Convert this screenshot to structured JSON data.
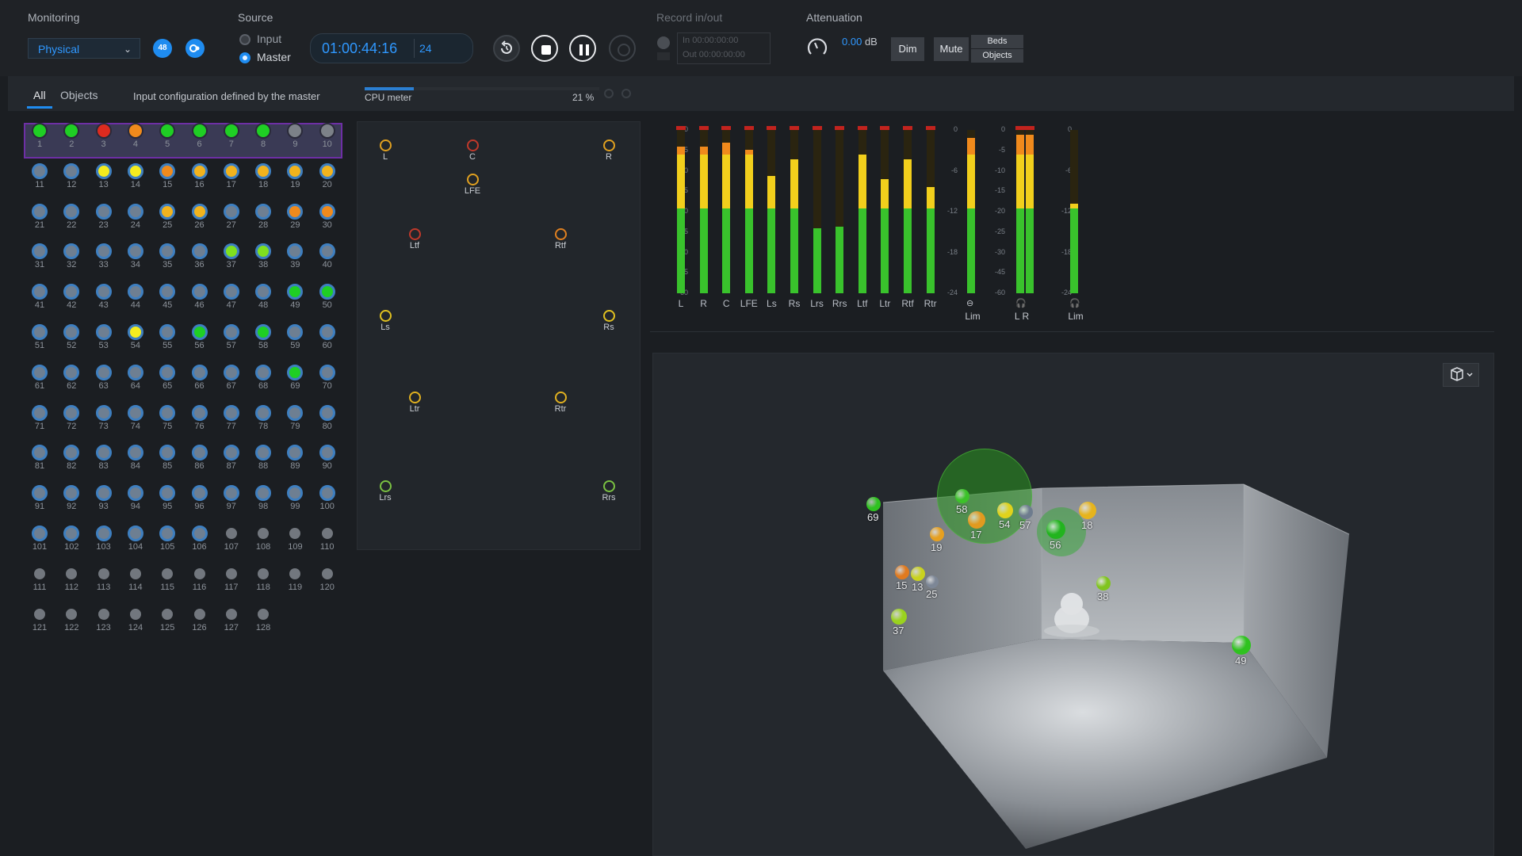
{
  "monitoring": {
    "title": "Monitoring",
    "mode": "Physical",
    "badge": "48"
  },
  "source": {
    "title": "Source",
    "options": [
      "Input",
      "Master"
    ],
    "selected": "Master"
  },
  "transport": {
    "timecode": "01:00:44:16",
    "fps": "24"
  },
  "record": {
    "title": "Record in/out",
    "in_label": "In",
    "in_value": "00:00:00:00",
    "out_label": "Out",
    "out_value": "00:00:00:00"
  },
  "attenuation": {
    "title": "Attenuation",
    "value": "0.00",
    "unit": "dB",
    "dim": "Dim",
    "mute": "Mute",
    "beds": "Beds",
    "objects": "Objects"
  },
  "tabs": {
    "all": "All",
    "objects": "Objects",
    "info": "Input configuration defined by the master",
    "cpu_label": "CPU meter",
    "cpu_value": "21 %",
    "cpu_fraction": 0.21
  },
  "inputs": [
    {
      "n": "1",
      "c": "green"
    },
    {
      "n": "2",
      "c": "green"
    },
    {
      "n": "3",
      "c": "red"
    },
    {
      "n": "4",
      "c": "orange"
    },
    {
      "n": "5",
      "c": "green"
    },
    {
      "n": "6",
      "c": "green"
    },
    {
      "n": "7",
      "c": "green"
    },
    {
      "n": "8",
      "c": "green"
    },
    {
      "n": "9",
      "c": "grey"
    },
    {
      "n": "10",
      "c": "grey"
    },
    {
      "n": "11",
      "c": "ring"
    },
    {
      "n": "12",
      "c": "ring"
    },
    {
      "n": "13",
      "c": "yellow"
    },
    {
      "n": "14",
      "c": "yellow"
    },
    {
      "n": "15",
      "c": "orange"
    },
    {
      "n": "16",
      "c": "amber"
    },
    {
      "n": "17",
      "c": "amber"
    },
    {
      "n": "18",
      "c": "amber"
    },
    {
      "n": "19",
      "c": "amber"
    },
    {
      "n": "20",
      "c": "amber"
    },
    {
      "n": "21",
      "c": "ring"
    },
    {
      "n": "22",
      "c": "ring"
    },
    {
      "n": "23",
      "c": "ring"
    },
    {
      "n": "24",
      "c": "ring"
    },
    {
      "n": "25",
      "c": "amber"
    },
    {
      "n": "26",
      "c": "amber"
    },
    {
      "n": "27",
      "c": "ring"
    },
    {
      "n": "28",
      "c": "ring"
    },
    {
      "n": "29",
      "c": "orange"
    },
    {
      "n": "30",
      "c": "orange"
    },
    {
      "n": "31",
      "c": "ring"
    },
    {
      "n": "32",
      "c": "ring"
    },
    {
      "n": "33",
      "c": "ring"
    },
    {
      "n": "34",
      "c": "ring"
    },
    {
      "n": "35",
      "c": "ring"
    },
    {
      "n": "36",
      "c": "ring"
    },
    {
      "n": "37",
      "c": "lime"
    },
    {
      "n": "38",
      "c": "lime"
    },
    {
      "n": "39",
      "c": "ring"
    },
    {
      "n": "40",
      "c": "ring"
    },
    {
      "n": "41",
      "c": "ring"
    },
    {
      "n": "42",
      "c": "ring"
    },
    {
      "n": "43",
      "c": "ring"
    },
    {
      "n": "44",
      "c": "ring"
    },
    {
      "n": "45",
      "c": "ring"
    },
    {
      "n": "46",
      "c": "ring"
    },
    {
      "n": "47",
      "c": "ring"
    },
    {
      "n": "48",
      "c": "ring"
    },
    {
      "n": "49",
      "c": "green"
    },
    {
      "n": "50",
      "c": "green"
    },
    {
      "n": "51",
      "c": "ring"
    },
    {
      "n": "52",
      "c": "ring"
    },
    {
      "n": "53",
      "c": "ring"
    },
    {
      "n": "54",
      "c": "yellow"
    },
    {
      "n": "55",
      "c": "ring"
    },
    {
      "n": "56",
      "c": "green"
    },
    {
      "n": "57",
      "c": "ring"
    },
    {
      "n": "58",
      "c": "green"
    },
    {
      "n": "59",
      "c": "ring"
    },
    {
      "n": "60",
      "c": "ring"
    },
    {
      "n": "61",
      "c": "ring"
    },
    {
      "n": "62",
      "c": "ring"
    },
    {
      "n": "63",
      "c": "ring"
    },
    {
      "n": "64",
      "c": "ring"
    },
    {
      "n": "65",
      "c": "ring"
    },
    {
      "n": "66",
      "c": "ring"
    },
    {
      "n": "67",
      "c": "ring"
    },
    {
      "n": "68",
      "c": "ring"
    },
    {
      "n": "69",
      "c": "green"
    },
    {
      "n": "70",
      "c": "ring"
    },
    {
      "n": "71",
      "c": "ring"
    },
    {
      "n": "72",
      "c": "ring"
    },
    {
      "n": "73",
      "c": "ring"
    },
    {
      "n": "74",
      "c": "ring"
    },
    {
      "n": "75",
      "c": "ring"
    },
    {
      "n": "76",
      "c": "ring"
    },
    {
      "n": "77",
      "c": "ring"
    },
    {
      "n": "78",
      "c": "ring"
    },
    {
      "n": "79",
      "c": "ring"
    },
    {
      "n": "80",
      "c": "ring"
    },
    {
      "n": "81",
      "c": "ring"
    },
    {
      "n": "82",
      "c": "ring"
    },
    {
      "n": "83",
      "c": "ring"
    },
    {
      "n": "84",
      "c": "ring"
    },
    {
      "n": "85",
      "c": "ring"
    },
    {
      "n": "86",
      "c": "ring"
    },
    {
      "n": "87",
      "c": "ring"
    },
    {
      "n": "88",
      "c": "ring"
    },
    {
      "n": "89",
      "c": "ring"
    },
    {
      "n": "90",
      "c": "ring"
    },
    {
      "n": "91",
      "c": "ring"
    },
    {
      "n": "92",
      "c": "ring"
    },
    {
      "n": "93",
      "c": "ring"
    },
    {
      "n": "94",
      "c": "ring"
    },
    {
      "n": "95",
      "c": "ring"
    },
    {
      "n": "96",
      "c": "ring"
    },
    {
      "n": "97",
      "c": "ring"
    },
    {
      "n": "98",
      "c": "ring"
    },
    {
      "n": "99",
      "c": "ring"
    },
    {
      "n": "100",
      "c": "ring"
    },
    {
      "n": "101",
      "c": "ring"
    },
    {
      "n": "102",
      "c": "ring"
    },
    {
      "n": "103",
      "c": "ring"
    },
    {
      "n": "104",
      "c": "ring"
    },
    {
      "n": "105",
      "c": "ring"
    },
    {
      "n": "106",
      "c": "ring"
    },
    {
      "n": "107",
      "c": "small"
    },
    {
      "n": "108",
      "c": "small"
    },
    {
      "n": "109",
      "c": "small"
    },
    {
      "n": "110",
      "c": "small"
    },
    {
      "n": "111",
      "c": "small"
    },
    {
      "n": "112",
      "c": "small"
    },
    {
      "n": "113",
      "c": "small"
    },
    {
      "n": "114",
      "c": "small"
    },
    {
      "n": "115",
      "c": "small"
    },
    {
      "n": "116",
      "c": "small"
    },
    {
      "n": "117",
      "c": "small"
    },
    {
      "n": "118",
      "c": "small"
    },
    {
      "n": "119",
      "c": "small"
    },
    {
      "n": "120",
      "c": "small"
    },
    {
      "n": "121",
      "c": "small"
    },
    {
      "n": "122",
      "c": "small"
    },
    {
      "n": "123",
      "c": "small"
    },
    {
      "n": "124",
      "c": "small"
    },
    {
      "n": "125",
      "c": "small"
    },
    {
      "n": "126",
      "c": "small"
    },
    {
      "n": "127",
      "c": "small"
    },
    {
      "n": "128",
      "c": "small"
    }
  ],
  "speakers": [
    {
      "name": "L",
      "color": "#e0a020"
    },
    {
      "name": "C",
      "color": "#c0392b"
    },
    {
      "name": "R",
      "color": "#e0a020"
    },
    {
      "name": "LFE",
      "color": "#e0a020"
    },
    {
      "name": "Ltf",
      "color": "#c0392b"
    },
    {
      "name": "Rtf",
      "color": "#e08020"
    },
    {
      "name": "Ls",
      "color": "#e0c020"
    },
    {
      "name": "Rs",
      "color": "#e0c020"
    },
    {
      "name": "Ltr",
      "color": "#e0b020"
    },
    {
      "name": "Rtr",
      "color": "#e0b020"
    },
    {
      "name": "Lrs",
      "color": "#7ac142"
    },
    {
      "name": "Rrs",
      "color": "#7ac142"
    }
  ],
  "meters": {
    "scale_left": [
      "0",
      "-5",
      "-10",
      "-15",
      "-20",
      "-25",
      "-30",
      "-45",
      "-60"
    ],
    "scale_lim": [
      "0",
      "-6",
      "-12",
      "-18",
      "-24"
    ],
    "channels": [
      {
        "label": "L",
        "level": 0.9
      },
      {
        "label": "R",
        "level": 0.9
      },
      {
        "label": "C",
        "level": 0.92
      },
      {
        "label": "LFE",
        "level": 0.88
      },
      {
        "label": "Ls",
        "level": 0.72
      },
      {
        "label": "Rs",
        "level": 0.82
      },
      {
        "label": "Lrs",
        "level": 0.4
      },
      {
        "label": "Rrs",
        "level": 0.41
      },
      {
        "label": "Ltf",
        "level": 0.85
      },
      {
        "label": "Ltr",
        "level": 0.7
      },
      {
        "label": "Rtf",
        "level": 0.82
      },
      {
        "label": "Rtr",
        "level": 0.65
      }
    ],
    "lim1": {
      "label": "Lim",
      "level": 0.95
    },
    "headphone": {
      "labels": [
        "L",
        "R"
      ],
      "level": 0.97
    },
    "lim2": {
      "label": "Lim",
      "level": 0.55
    }
  },
  "view3d": {
    "objects": [
      {
        "id": "69",
        "color": "#2fc21f"
      },
      {
        "id": "58",
        "color": "#3cc229"
      },
      {
        "id": "17",
        "color": "#e29a1f"
      },
      {
        "id": "54",
        "color": "#e0d21c"
      },
      {
        "id": "57",
        "color": "#6e7c8e"
      },
      {
        "id": "18",
        "color": "#e6b41c"
      },
      {
        "id": "56",
        "color": "#22b41e"
      },
      {
        "id": "19",
        "color": "#e6a020"
      },
      {
        "id": "15",
        "color": "#e07a1f"
      },
      {
        "id": "13",
        "color": "#c9d21e"
      },
      {
        "id": "25",
        "color": "#7d8796"
      },
      {
        "id": "37",
        "color": "#9ad21e"
      },
      {
        "id": "38",
        "color": "#80c41e"
      },
      {
        "id": "49",
        "color": "#2fc21f"
      }
    ]
  },
  "colors": {
    "accent": "#1f8cf0",
    "green": "#2fc21f",
    "yellow": "#e8e21c",
    "orange": "#ee9a1c",
    "red": "#d9342b",
    "panel": "#24282d"
  }
}
